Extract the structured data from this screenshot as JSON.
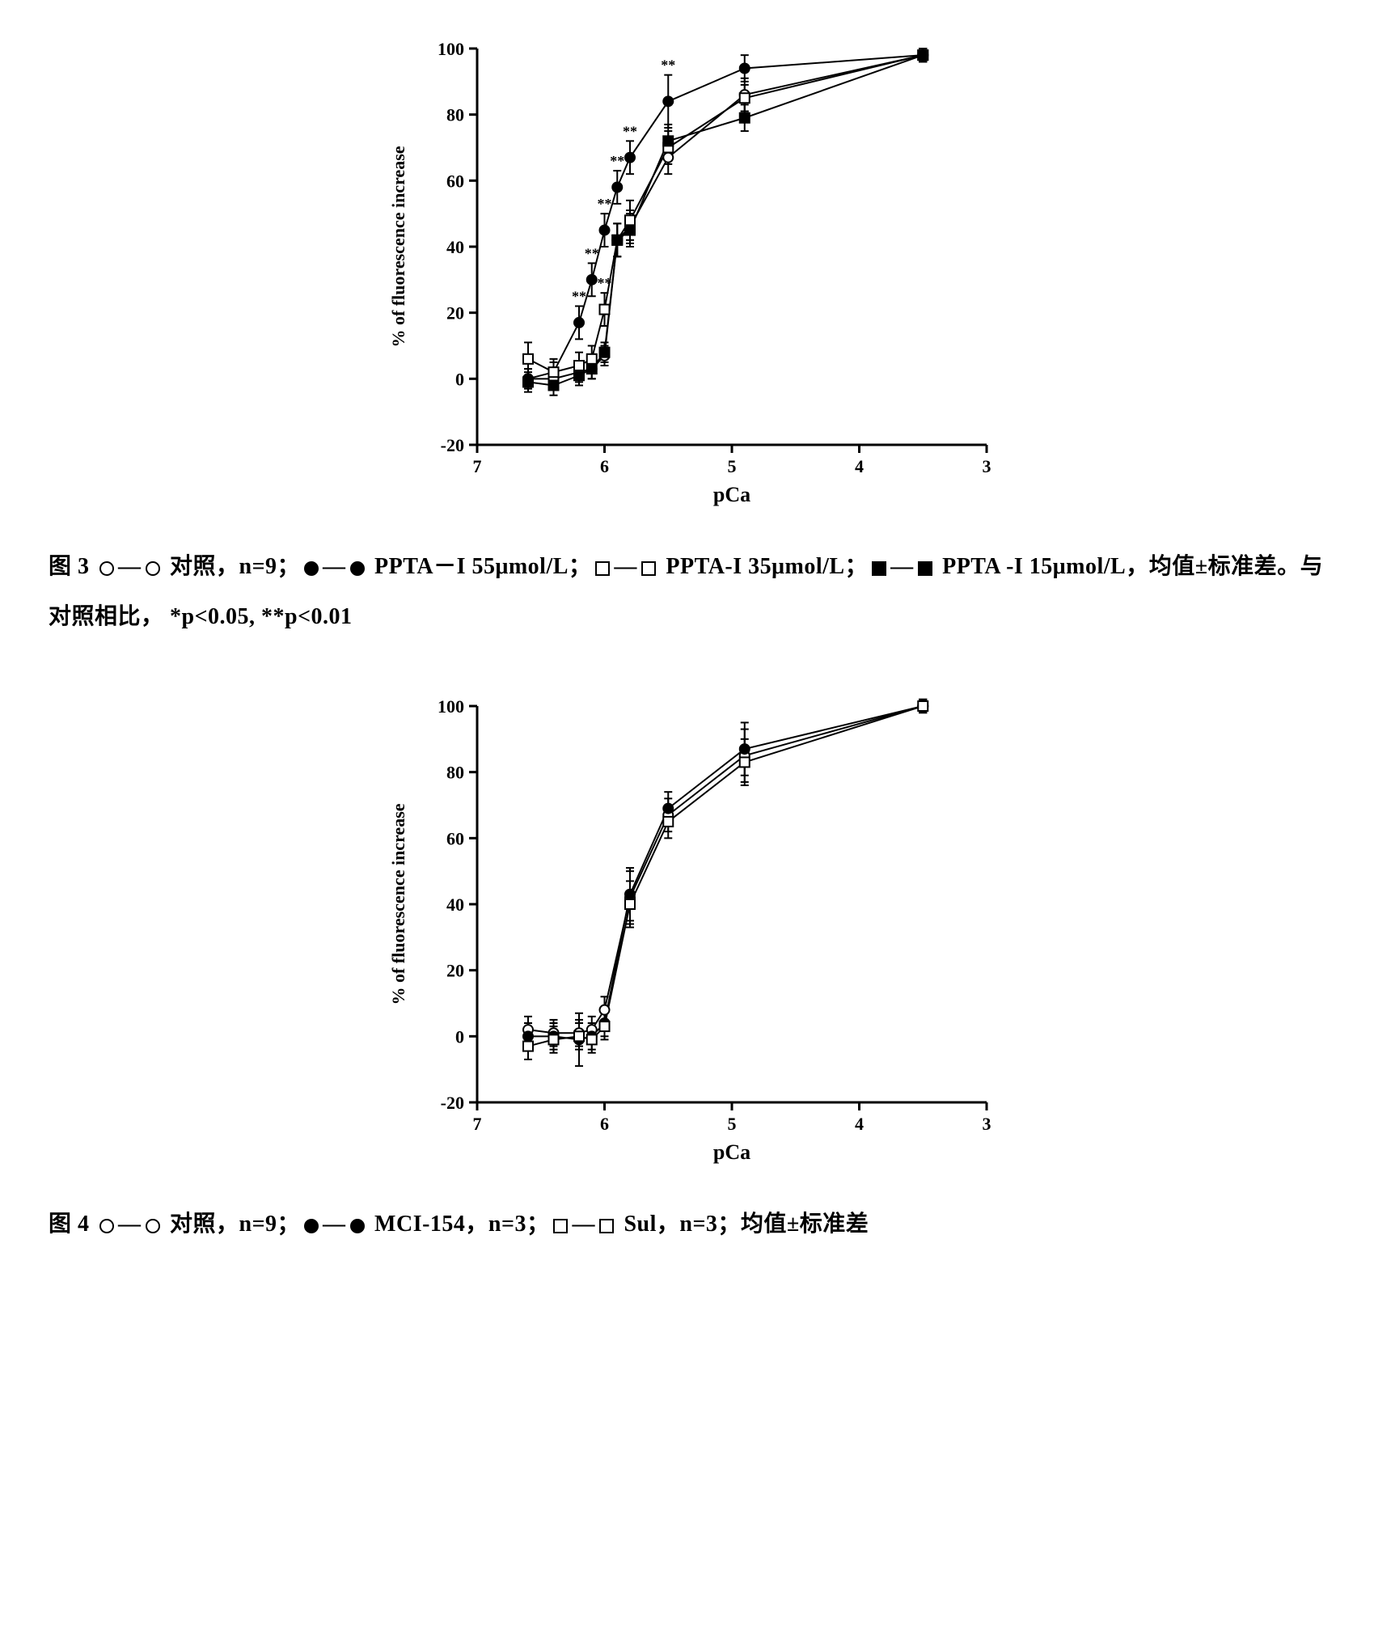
{
  "chart1": {
    "type": "line",
    "ylabel": "% of fluorescence increase",
    "xlabel": "pCa",
    "xlim": [
      7,
      3
    ],
    "ylim": [
      -20,
      100
    ],
    "xticks": [
      7,
      6,
      5,
      4,
      3
    ],
    "yticks": [
      -20,
      0,
      20,
      40,
      60,
      80,
      100
    ],
    "line_color": "#000000",
    "marker_size": 6,
    "series": [
      {
        "name": "control",
        "marker": "open-circle",
        "x": [
          6.6,
          6.4,
          6.2,
          6.1,
          6.0,
          5.9,
          5.8,
          5.5,
          4.9,
          3.5
        ],
        "y": [
          0,
          0,
          2,
          3,
          7,
          42,
          46,
          67,
          86,
          98
        ],
        "err": [
          3,
          3,
          3,
          3,
          3,
          5,
          5,
          5,
          5,
          2
        ],
        "sig": [
          "",
          "",
          "",
          "",
          "",
          "",
          "",
          "",
          "",
          ""
        ]
      },
      {
        "name": "ppta-55",
        "marker": "filled-circle",
        "x": [
          6.6,
          6.4,
          6.2,
          6.1,
          6.0,
          5.9,
          5.8,
          5.5,
          4.9,
          3.5
        ],
        "y": [
          0,
          2,
          17,
          30,
          45,
          58,
          67,
          84,
          94,
          98
        ],
        "err": [
          3,
          3,
          5,
          5,
          5,
          5,
          5,
          8,
          4,
          2
        ],
        "sig": [
          "",
          "",
          "**",
          "**",
          "**",
          "**",
          "**",
          "**",
          "",
          ""
        ]
      },
      {
        "name": "ppta-35",
        "marker": "open-square",
        "x": [
          6.6,
          6.4,
          6.2,
          6.1,
          6.0,
          5.9,
          5.8,
          5.5,
          4.9,
          3.5
        ],
        "y": [
          6,
          2,
          4,
          6,
          21,
          42,
          48,
          70,
          85,
          98
        ],
        "err": [
          5,
          4,
          4,
          4,
          5,
          5,
          6,
          5,
          4,
          2
        ],
        "sig": [
          "",
          "",
          "",
          "",
          "**",
          "",
          "",
          "",
          "",
          ""
        ]
      },
      {
        "name": "ppta-15",
        "marker": "filled-square",
        "x": [
          6.6,
          6.4,
          6.2,
          6.1,
          6.0,
          5.9,
          5.8,
          5.5,
          4.9,
          3.5
        ],
        "y": [
          -1,
          -2,
          1,
          3,
          8,
          42,
          45,
          72,
          79,
          98
        ],
        "err": [
          3,
          3,
          3,
          3,
          3,
          5,
          5,
          5,
          4,
          2
        ],
        "sig": [
          "",
          "",
          "",
          "",
          "",
          "",
          "",
          "",
          "",
          ""
        ]
      }
    ]
  },
  "caption1": {
    "prefix": "图 3 ",
    "parts": [
      {
        "sym": "open-circle",
        "sep": "—",
        "text": " 对照，n=9；"
      },
      {
        "sym": "filled-circle",
        "sep": "—",
        "text": " PPTA－I 55μmol/L；"
      },
      {
        "sym": "open-square",
        "sep": "—",
        "text": " PPTA-I 35μmol/L；"
      },
      {
        "sym": "filled-square",
        "sep": "—",
        "text": " PPTA -I 15μmol/L，"
      }
    ],
    "suffix": "均值±标准差。与对照相比， *p<0.05, **p<0.01"
  },
  "chart2": {
    "type": "line",
    "ylabel": "% of fluorescence increase",
    "xlabel": "pCa",
    "xlim": [
      7,
      3
    ],
    "ylim": [
      -20,
      100
    ],
    "xticks": [
      7,
      6,
      5,
      4,
      3
    ],
    "yticks": [
      -20,
      0,
      20,
      40,
      60,
      80,
      100
    ],
    "line_color": "#000000",
    "marker_size": 6,
    "series": [
      {
        "name": "control",
        "marker": "open-circle",
        "x": [
          6.6,
          6.4,
          6.2,
          6.1,
          6.0,
          5.8,
          5.5,
          4.9,
          3.5
        ],
        "y": [
          2,
          1,
          1,
          2,
          8,
          42,
          67,
          85,
          100
        ],
        "err": [
          4,
          4,
          4,
          4,
          4,
          8,
          5,
          8,
          2
        ]
      },
      {
        "name": "mci154",
        "marker": "filled-circle",
        "x": [
          6.6,
          6.4,
          6.2,
          6.1,
          6.0,
          5.8,
          5.5,
          4.9,
          3.5
        ],
        "y": [
          0,
          0,
          -1,
          0,
          4,
          43,
          69,
          87,
          100
        ],
        "err": [
          4,
          4,
          8,
          4,
          4,
          8,
          5,
          8,
          2
        ]
      },
      {
        "name": "sul",
        "marker": "open-square",
        "x": [
          6.6,
          6.4,
          6.2,
          6.1,
          6.0,
          5.8,
          5.5,
          4.9,
          3.5
        ],
        "y": [
          -3,
          -1,
          0,
          -1,
          3,
          40,
          65,
          83,
          100
        ],
        "err": [
          4,
          4,
          4,
          4,
          4,
          7,
          5,
          7,
          2
        ]
      }
    ]
  },
  "caption2": {
    "prefix": "图 4 ",
    "parts": [
      {
        "sym": "open-circle",
        "sep": "—",
        "text": " 对照，n=9；"
      },
      {
        "sym": "filled-circle",
        "sep": "—",
        "text": " MCI-154，n=3；"
      },
      {
        "sym": "open-square",
        "sep": "—",
        "text": " Sul，n=3；"
      }
    ],
    "suffix": "均值±标准差"
  },
  "colors": {
    "stroke": "#000000",
    "fill_open": "#ffffff",
    "fill_closed": "#000000",
    "bg": "#ffffff"
  }
}
